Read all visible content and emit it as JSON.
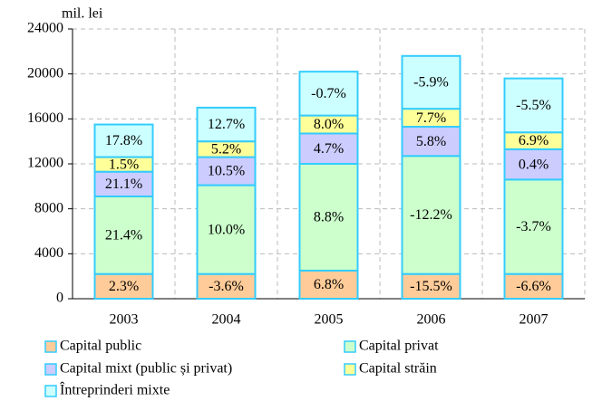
{
  "chart_data": {
    "type": "stacked_bar",
    "ylabel": "mil. lei",
    "categories": [
      "2003",
      "2004",
      "2005",
      "2006",
      "2007"
    ],
    "ylim": [
      0,
      24000
    ],
    "yticks": [
      0,
      4000,
      8000,
      12000,
      16000,
      20000,
      24000
    ],
    "grid": true,
    "series": [
      {
        "name": "Capital public",
        "color": "#ffcc99",
        "values": [
          2200,
          2200,
          2500,
          2200,
          2200
        ],
        "labels": [
          "2.3%",
          "-3.6%",
          "6.8%",
          "-15.5%",
          "-6.6%"
        ]
      },
      {
        "name": "Capital privat",
        "color": "#ccffcc",
        "values": [
          6900,
          7900,
          9500,
          10500,
          8400
        ],
        "labels": [
          "21.4%",
          "10.0%",
          "8.8%",
          "-12.2%",
          "-3.7%"
        ]
      },
      {
        "name": "Capital mixt (public și privat)",
        "color": "#ccccff",
        "values": [
          2200,
          2500,
          2700,
          2600,
          2700
        ],
        "labels": [
          "21.1%",
          "10.5%",
          "4.7%",
          "5.8%",
          "0.4%"
        ]
      },
      {
        "name": "Capital străin",
        "color": "#ffff99",
        "values": [
          1300,
          1400,
          1600,
          1600,
          1500
        ],
        "labels": [
          "1.5%",
          "5.2%",
          "8.0%",
          "7.7%",
          "6.9%"
        ]
      },
      {
        "name": "Întreprinderi mixte",
        "color": "#ccffff",
        "values": [
          2900,
          3000,
          3900,
          4700,
          4800
        ],
        "labels": [
          "17.8%",
          "12.7%",
          "-0.7%",
          "-5.9%",
          "-5.5%"
        ]
      }
    ]
  }
}
